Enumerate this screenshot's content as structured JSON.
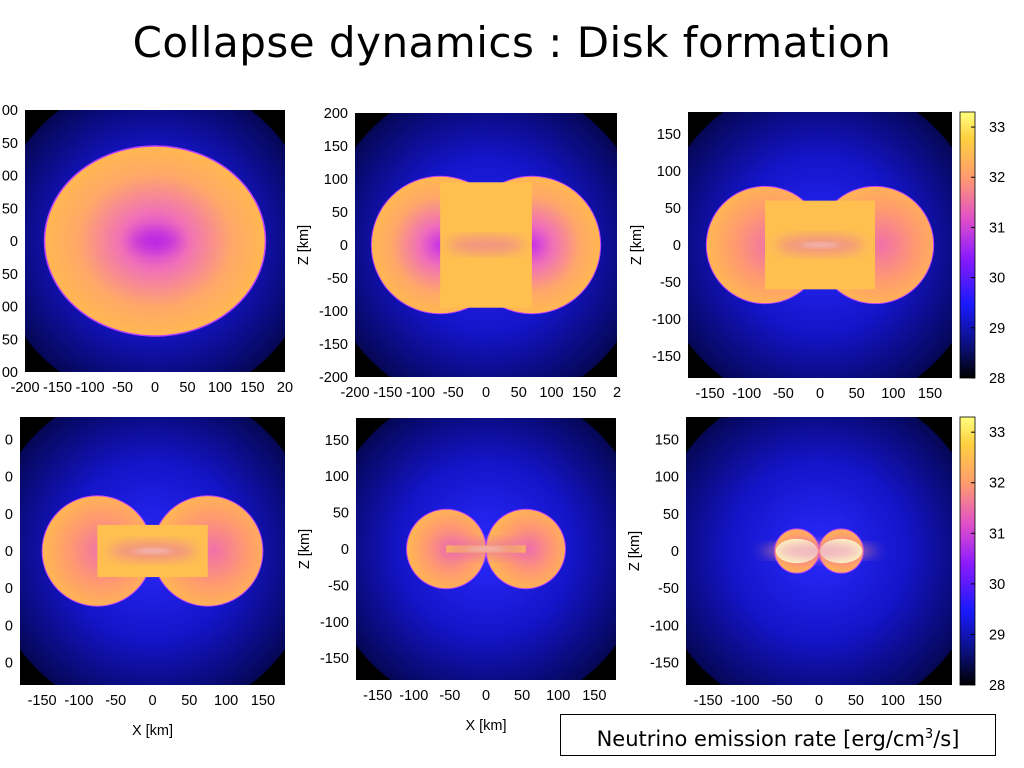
{
  "slide": {
    "title": "Collapse dynamics : Disk formation",
    "caption_prefix": "Neutrino emission rate [erg/cm",
    "caption_sup": "3",
    "caption_suffix": "/s]"
  },
  "colors": {
    "scale": [
      "#000000",
      "#0a0f7a",
      "#1a1aff",
      "#8a1aff",
      "#e050c8",
      "#ff9a70",
      "#ffd040",
      "#ffff80"
    ]
  },
  "chart_data": [
    {
      "type": "heatmap",
      "panel": "top-left",
      "xlabel": "",
      "ylabel": "",
      "xticks": [
        "-200",
        "-150",
        "-100",
        "-50",
        "0",
        "50",
        "100",
        "150",
        "20"
      ],
      "yticks": [
        "00",
        "50",
        "00",
        "50",
        "0",
        "50",
        "00",
        "50",
        "00"
      ],
      "xlim": [
        -200,
        200
      ],
      "ylim": [
        -200,
        200
      ],
      "shape": "oblate",
      "half_width_km": 170,
      "half_height_km": 145
    },
    {
      "type": "heatmap",
      "panel": "top-middle",
      "xlabel": "",
      "ylabel": "Z [km]",
      "xticks": [
        "-200",
        "-150",
        "-100",
        "-50",
        "0",
        "50",
        "100",
        "150",
        "2"
      ],
      "yticks": [
        "200",
        "150",
        "100",
        "50",
        "0",
        "-50",
        "-100",
        "-150",
        "-200"
      ],
      "xlim": [
        -200,
        200
      ],
      "ylim": [
        -200,
        200
      ],
      "shape": "peanut",
      "lobe_offset_km": 70,
      "lobe_radius_km": 105,
      "waist_half_height_km": 95
    },
    {
      "type": "heatmap",
      "panel": "top-right",
      "xlabel": "",
      "ylabel": "Z [km]",
      "xticks": [
        "-150",
        "-100",
        "-50",
        "0",
        "50",
        "100",
        "150"
      ],
      "yticks": [
        "150",
        "100",
        "50",
        "0",
        "-50",
        "-100",
        "-150"
      ],
      "xlim": [
        -180,
        180
      ],
      "ylim": [
        -180,
        180
      ],
      "shape": "two-lobes",
      "lobe_offset_km": 75,
      "lobe_radius_km": 80,
      "waist_half_height_km": 60,
      "colorbar": {
        "ticks": [
          "33",
          "32",
          "31",
          "30",
          "29",
          "28"
        ],
        "range": [
          28,
          33.3
        ]
      }
    },
    {
      "type": "heatmap",
      "panel": "bottom-left",
      "xlabel": "X [km]",
      "ylabel": "",
      "xticks": [
        "-150",
        "-100",
        "-50",
        "0",
        "50",
        "100",
        "150"
      ],
      "yticks": [
        "0",
        "0",
        "0",
        "0",
        "0",
        "0",
        "0"
      ],
      "xlim": [
        -180,
        180
      ],
      "ylim": [
        -180,
        180
      ],
      "shape": "two-lobes",
      "lobe_offset_km": 75,
      "lobe_radius_km": 75,
      "waist_half_height_km": 35
    },
    {
      "type": "heatmap",
      "panel": "bottom-middle",
      "xlabel": "X [km]",
      "ylabel": "Z [km]",
      "xticks": [
        "-150",
        "-100",
        "-50",
        "0",
        "50",
        "100",
        "150"
      ],
      "yticks": [
        "150",
        "100",
        "50",
        "0",
        "-50",
        "-100",
        "-150"
      ],
      "xlim": [
        -180,
        180
      ],
      "ylim": [
        -180,
        180
      ],
      "shape": "two-lobes",
      "lobe_offset_km": 55,
      "lobe_radius_km": 55,
      "waist_half_height_km": 5
    },
    {
      "type": "heatmap",
      "panel": "bottom-right",
      "xlabel": "",
      "ylabel": "Z [km]",
      "xticks": [
        "-150",
        "-100",
        "-50",
        "0",
        "50",
        "100",
        "150"
      ],
      "yticks": [
        "150",
        "100",
        "50",
        "0",
        "-50",
        "-100",
        "-150"
      ],
      "xlim": [
        -180,
        180
      ],
      "ylim": [
        -180,
        180
      ],
      "shape": "thin-disk",
      "lobe_offset_km": 30,
      "lobe_radius_km": 30,
      "waist_half_height_km": 3,
      "colorbar": {
        "ticks": [
          "33",
          "32",
          "31",
          "30",
          "29",
          "28"
        ],
        "range": [
          28,
          33.3
        ]
      }
    }
  ]
}
